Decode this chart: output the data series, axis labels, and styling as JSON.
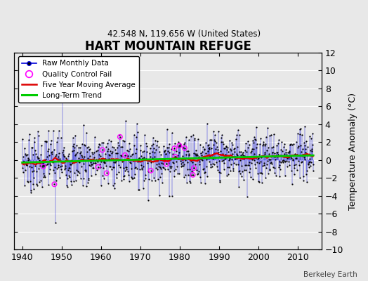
{
  "title": "HART MOUNTAIN REFUGE",
  "subtitle": "42.548 N, 119.656 W (United States)",
  "ylabel": "Temperature Anomaly (°C)",
  "credit": "Berkeley Earth",
  "ylim": [
    -10,
    12
  ],
  "yticks": [
    -10,
    -8,
    -6,
    -4,
    -2,
    0,
    2,
    4,
    6,
    8,
    10,
    12
  ],
  "xlim": [
    1938,
    2016
  ],
  "xticks": [
    1940,
    1950,
    1960,
    1970,
    1980,
    1990,
    2000,
    2010
  ],
  "year_start": 1940,
  "year_end": 2014,
  "seed": 7,
  "bg_color": "#e8e8e8",
  "line_color": "#0000dd",
  "dot_color": "#000000",
  "ma_color": "#dd0000",
  "trend_color": "#00cc00",
  "qc_color": "#ff00ff",
  "grid_color": "#cccccc",
  "legend_bg": "#ffffff"
}
